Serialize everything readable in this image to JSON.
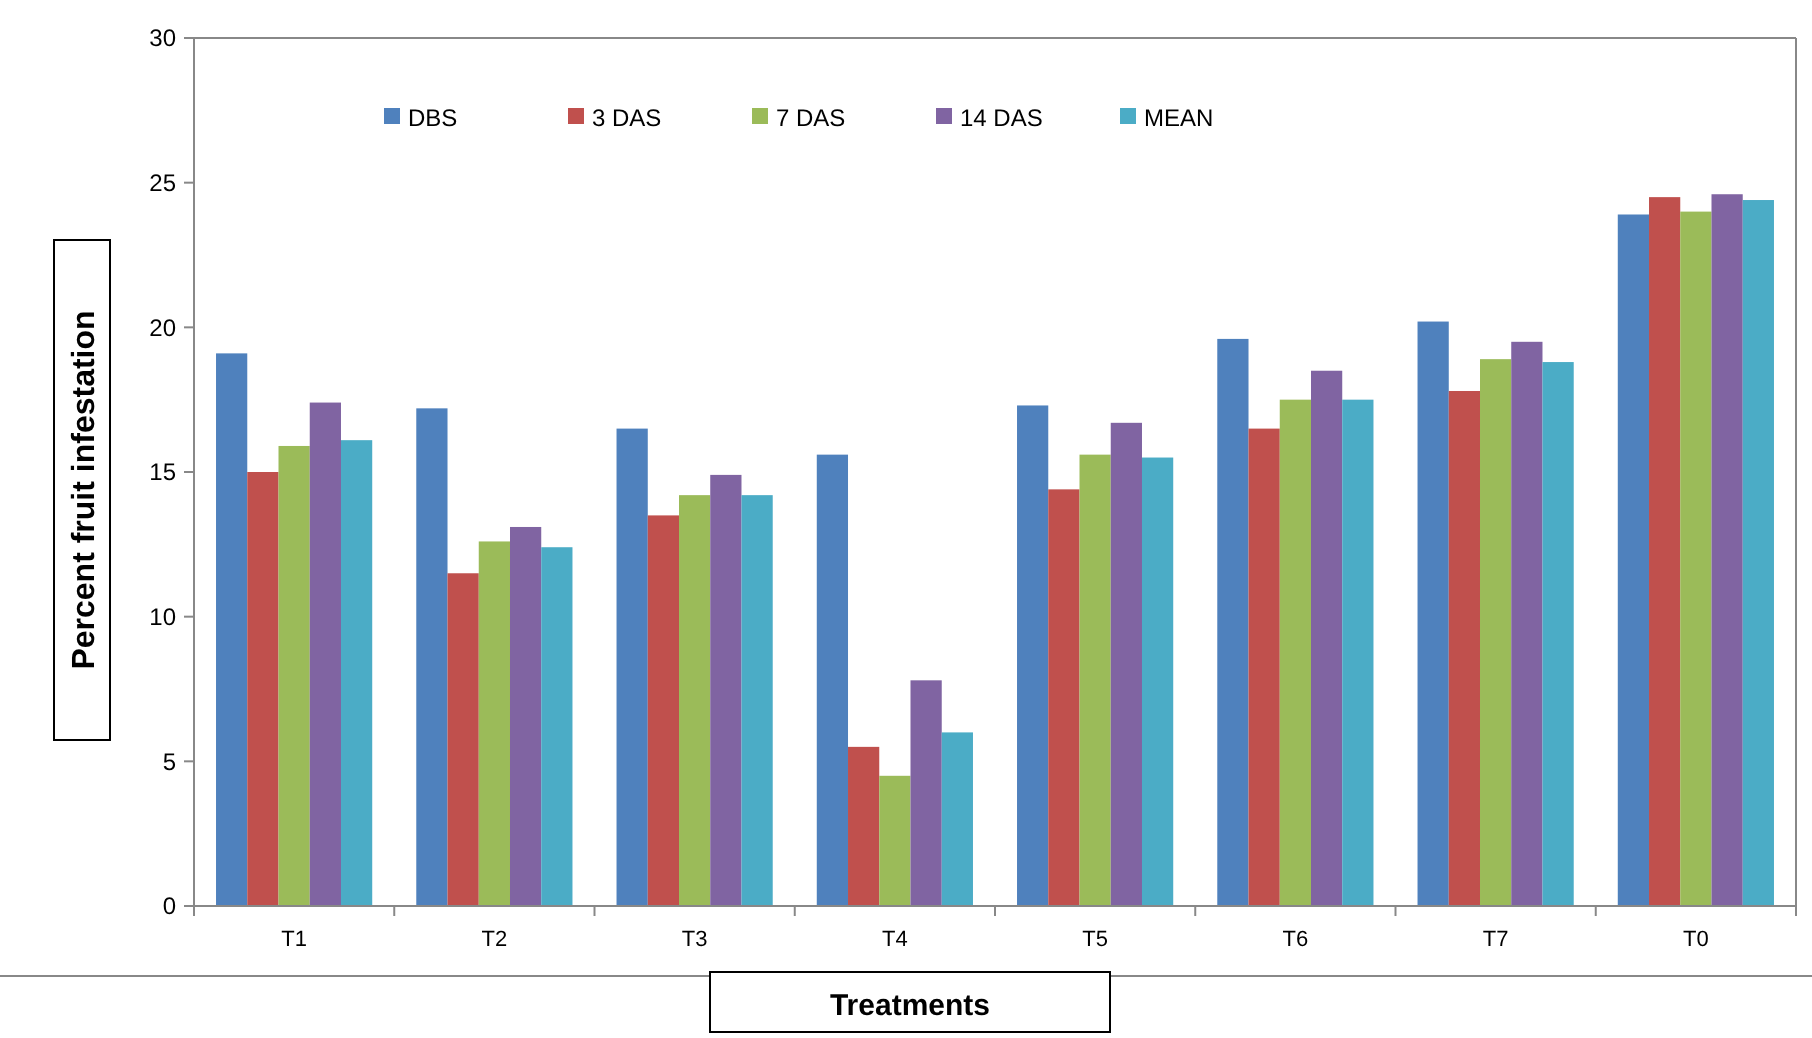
{
  "chart_data": {
    "type": "bar",
    "xlabel": "Treatments",
    "ylabel": "Percent fruit infestation",
    "categories": [
      "T1",
      "T2",
      "T3",
      "T4",
      "T5",
      "T6",
      "T7",
      "T0"
    ],
    "series": [
      {
        "name": "DBS",
        "color": "#4f81bd",
        "values": [
          19.1,
          17.2,
          16.5,
          15.6,
          17.3,
          19.6,
          20.2,
          23.9
        ]
      },
      {
        "name": "3 DAS",
        "color": "#c0504d",
        "values": [
          15.0,
          11.5,
          13.5,
          5.5,
          14.4,
          16.5,
          17.8,
          24.5
        ]
      },
      {
        "name": "7 DAS",
        "color": "#9bbb59",
        "values": [
          15.9,
          12.6,
          14.2,
          4.5,
          15.6,
          17.5,
          18.9,
          24.0
        ]
      },
      {
        "name": "14 DAS",
        "color": "#8064a2",
        "values": [
          17.4,
          13.1,
          14.9,
          7.8,
          16.7,
          18.5,
          19.5,
          24.6
        ]
      },
      {
        "name": "MEAN",
        "color": "#4bacc6",
        "values": [
          16.1,
          12.4,
          14.2,
          6.0,
          15.5,
          17.5,
          18.8,
          24.4
        ]
      }
    ],
    "ylim": [
      0,
      30
    ],
    "yticks": [
      0,
      5,
      10,
      15,
      20,
      25,
      30
    ],
    "grid": false,
    "legend": "top left"
  }
}
